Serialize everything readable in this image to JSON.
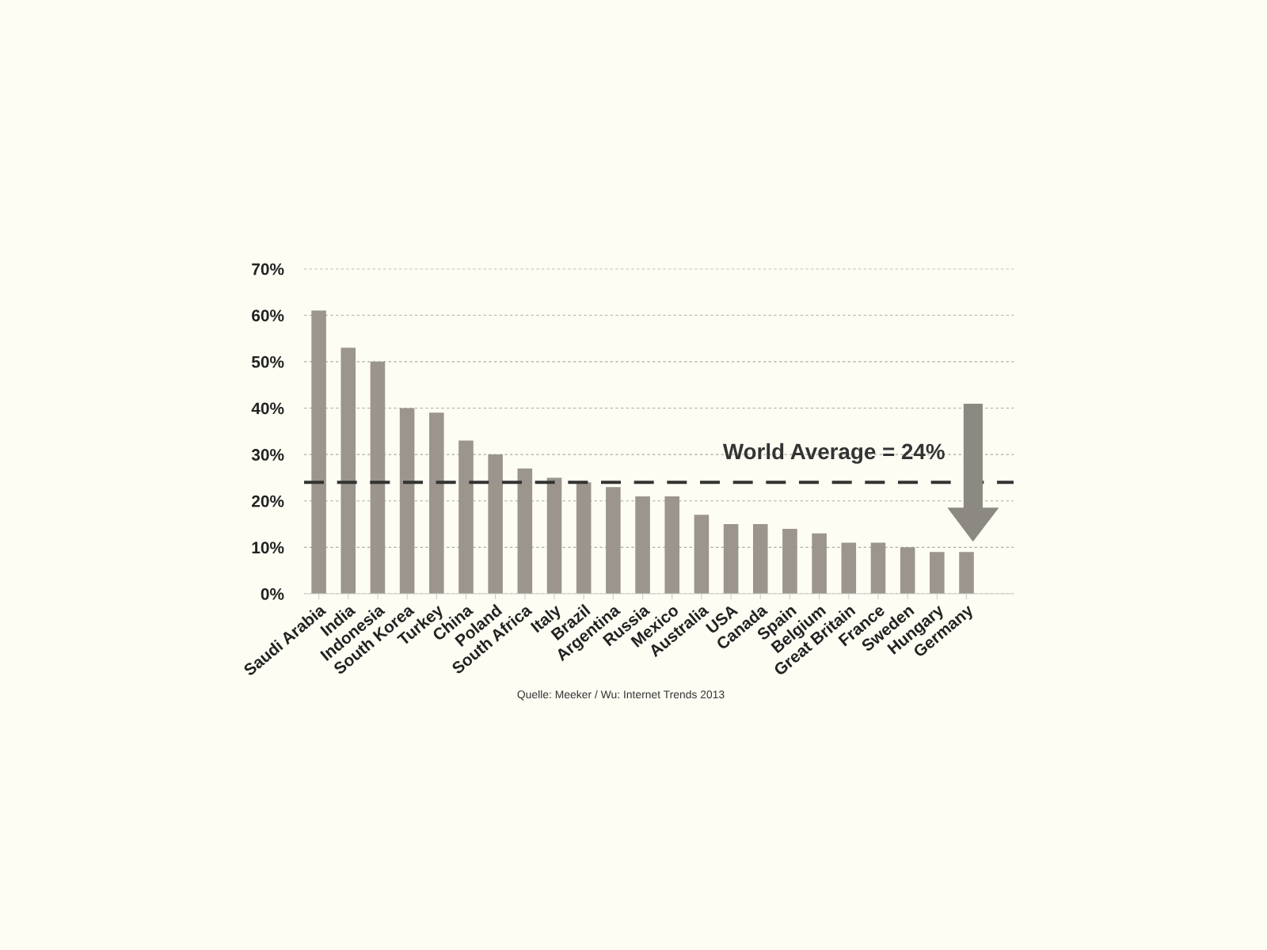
{
  "chart_data": {
    "type": "bar",
    "categories": [
      "Saudi Arabia",
      "India",
      "Indonesia",
      "South Korea",
      "Turkey",
      "China",
      "Poland",
      "South Africa",
      "Italy",
      "Brazil",
      "Argentina",
      "Russia",
      "Mexico",
      "Australia",
      "USA",
      "Canada",
      "Spain",
      "Belgium",
      "Great Britain",
      "France",
      "Sweden",
      "Hungary",
      "Germany"
    ],
    "values": [
      61,
      53,
      50,
      40,
      39,
      33,
      30,
      27,
      25,
      24,
      23,
      21,
      21,
      17,
      15,
      15,
      14,
      13,
      11,
      11,
      10,
      9,
      9
    ],
    "color": "#9b958d",
    "ylim": [
      0,
      70
    ],
    "yticks": [
      {
        "value": 0,
        "label": "0%"
      },
      {
        "value": 10,
        "label": "10%"
      },
      {
        "value": 20,
        "label": "20%"
      },
      {
        "value": 30,
        "label": "30%"
      },
      {
        "value": 40,
        "label": "40%"
      },
      {
        "value": 50,
        "label": "50%"
      },
      {
        "value": 60,
        "label": "60%"
      },
      {
        "value": 70,
        "label": "70%"
      }
    ],
    "grid": "y",
    "ref_lines": [
      {
        "axis": "y",
        "value": 24,
        "label": "World Average = 24%",
        "color": "#333333",
        "line_style": "dashed"
      }
    ],
    "annotations": [
      "Quelle: Meeker / Wu: Internet Trends 2013"
    ]
  }
}
